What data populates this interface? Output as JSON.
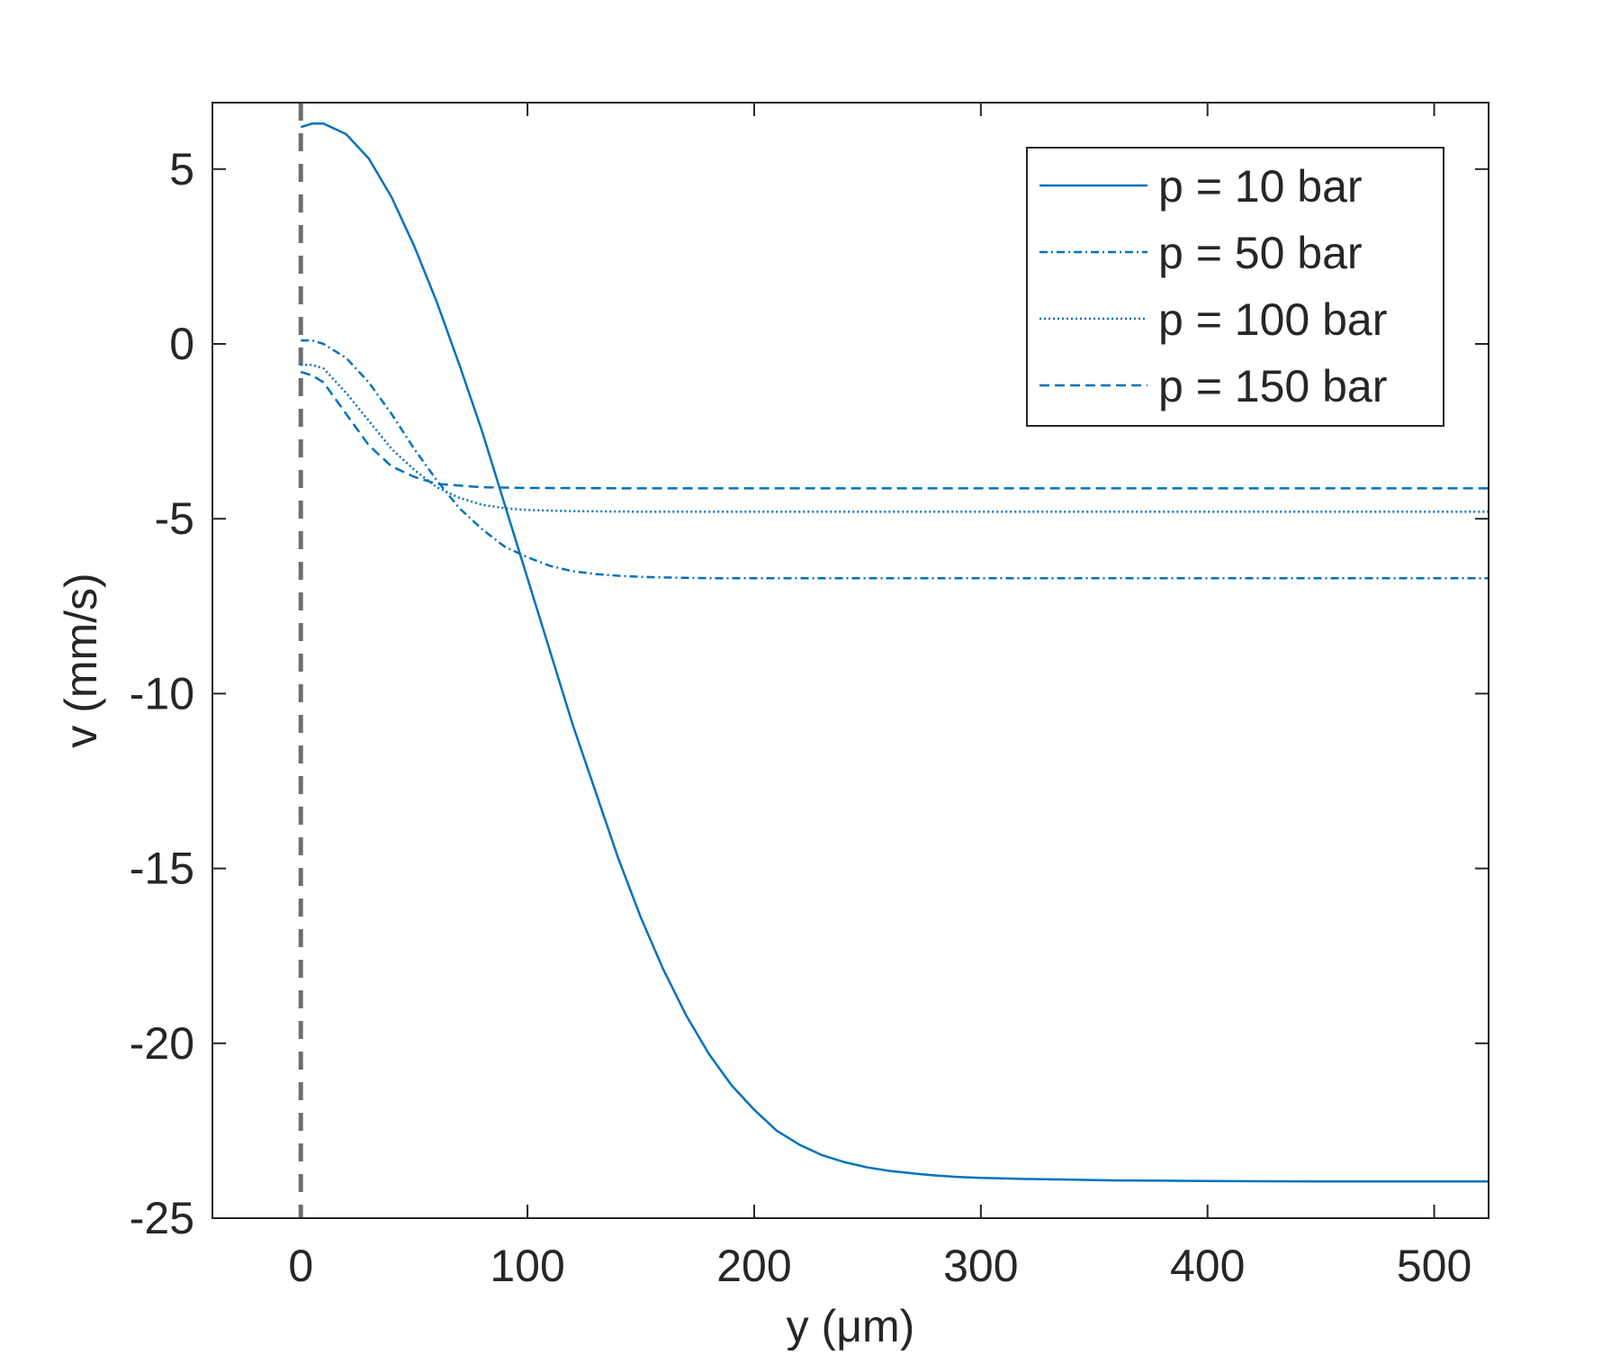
{
  "chart_data": {
    "type": "line",
    "xlabel": "y (μm)",
    "ylabel": "v (mm/s)",
    "xlim": [
      -39,
      524
    ],
    "ylim": [
      -25,
      6.9
    ],
    "xticks": [
      0,
      100,
      200,
      300,
      400,
      500
    ],
    "yticks": [
      5,
      0,
      -5,
      -10,
      -15,
      -20,
      -25
    ],
    "xtick_labels": [
      "0",
      "100",
      "200",
      "300",
      "400",
      "500"
    ],
    "ytick_labels": [
      "5",
      "0",
      "-5",
      "-10",
      "-15",
      "-20",
      "-25"
    ],
    "grid": false,
    "legend_position": "top-right",
    "reference_line": {
      "x": 0,
      "color": "#6e6e6e",
      "style": "dashed"
    },
    "series": [
      {
        "name": "p = 10 bar",
        "style": "solid",
        "color": "#0072bd",
        "x": [
          0,
          5,
          10,
          20,
          30,
          40,
          50,
          60,
          70,
          80,
          90,
          100,
          110,
          120,
          130,
          140,
          150,
          160,
          170,
          180,
          190,
          200,
          210,
          220,
          230,
          240,
          250,
          260,
          270,
          280,
          290,
          300,
          320,
          340,
          360,
          380,
          400,
          450,
          500,
          524
        ],
        "values": [
          6.2,
          6.3,
          6.3,
          6.0,
          5.3,
          4.2,
          2.8,
          1.2,
          -0.6,
          -2.5,
          -4.6,
          -6.7,
          -8.8,
          -10.9,
          -12.8,
          -14.7,
          -16.4,
          -17.9,
          -19.2,
          -20.3,
          -21.2,
          -21.9,
          -22.5,
          -22.9,
          -23.2,
          -23.4,
          -23.55,
          -23.65,
          -23.72,
          -23.78,
          -23.82,
          -23.85,
          -23.88,
          -23.9,
          -23.92,
          -23.93,
          -23.94,
          -23.95,
          -23.95,
          -23.95
        ]
      },
      {
        "name": "p = 50 bar",
        "style": "dashdot",
        "color": "#0072bd",
        "x": [
          0,
          5,
          10,
          20,
          30,
          40,
          50,
          60,
          70,
          80,
          90,
          100,
          110,
          120,
          130,
          140,
          150,
          160,
          180,
          200,
          250,
          300,
          400,
          524
        ],
        "values": [
          0.1,
          0.1,
          0.0,
          -0.4,
          -1.1,
          -2.0,
          -3.0,
          -3.9,
          -4.7,
          -5.3,
          -5.8,
          -6.1,
          -6.35,
          -6.5,
          -6.58,
          -6.63,
          -6.66,
          -6.68,
          -6.7,
          -6.7,
          -6.7,
          -6.7,
          -6.7,
          -6.7
        ]
      },
      {
        "name": "p = 100 bar",
        "style": "dotted",
        "color": "#0072bd",
        "x": [
          0,
          5,
          10,
          20,
          30,
          40,
          50,
          60,
          70,
          80,
          90,
          100,
          120,
          150,
          200,
          300,
          400,
          524
        ],
        "values": [
          -0.6,
          -0.6,
          -0.7,
          -1.4,
          -2.2,
          -3.0,
          -3.6,
          -4.1,
          -4.4,
          -4.6,
          -4.7,
          -4.75,
          -4.78,
          -4.8,
          -4.8,
          -4.8,
          -4.8,
          -4.8
        ]
      },
      {
        "name": "p = 150 bar",
        "style": "dashed",
        "color": "#0072bd",
        "x": [
          0,
          5,
          10,
          20,
          30,
          40,
          50,
          60,
          70,
          80,
          100,
          150,
          200,
          300,
          400,
          524
        ],
        "values": [
          -0.8,
          -0.9,
          -1.1,
          -2.0,
          -2.9,
          -3.5,
          -3.8,
          -4.0,
          -4.05,
          -4.1,
          -4.12,
          -4.13,
          -4.13,
          -4.13,
          -4.13,
          -4.13
        ]
      }
    ]
  }
}
